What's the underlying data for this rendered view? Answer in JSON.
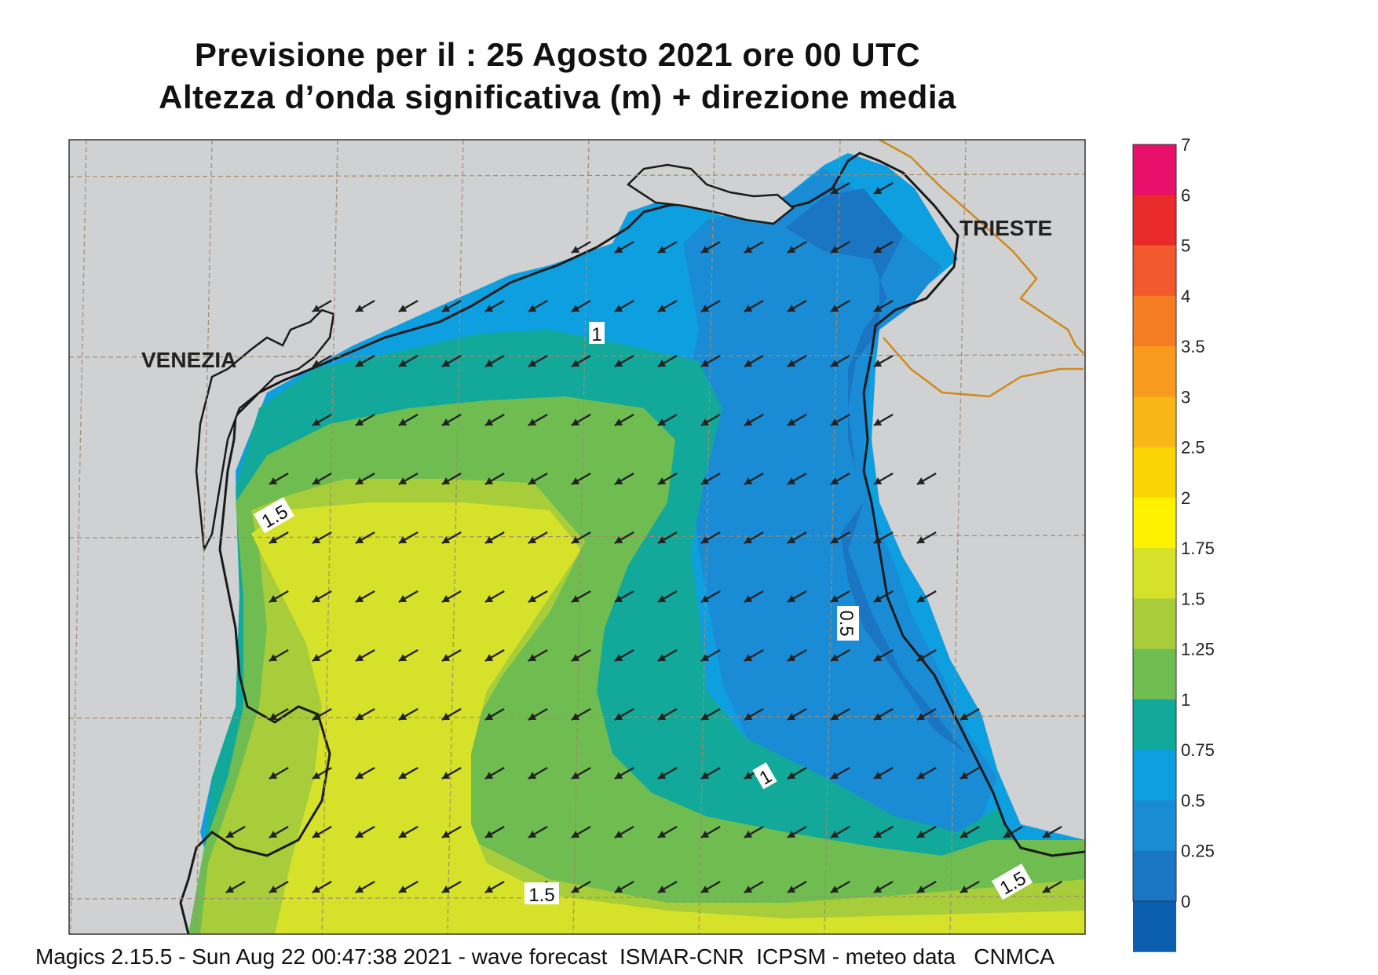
{
  "title": {
    "line1": "Previsione per il  :  25   Agosto  2021   ore 00 UTC",
    "line2": "Altezza d’onda significativa (m) + direzione media"
  },
  "cities": [
    "VENEZIA",
    "TRIESTE"
  ],
  "contour_labels": [
    "1",
    "1.5",
    "0.5",
    "1",
    "1.5",
    "1.5"
  ],
  "colorbar": {
    "levels": [
      "7",
      "6",
      "5",
      "4",
      "3.5",
      "3",
      "2.5",
      "2",
      "1.75",
      "1.5",
      "1.25",
      "1",
      "0.75",
      "0.5",
      "0.25",
      "0"
    ],
    "colors": [
      "#e8106a",
      "#e82a2a",
      "#f25a2e",
      "#f57d24",
      "#f79a1e",
      "#f9b617",
      "#fbd404",
      "#fff200",
      "#d6e12a",
      "#a8cd3a",
      "#6fbd50",
      "#12a89a",
      "#0d9fe0",
      "#1a8cd6",
      "#1a75c2",
      "#0b5fae"
    ]
  },
  "wave_direction": "toward south-west",
  "footer": "Magics 2.15.5 - Sun Aug 22 00:47:38 2021 - wave forecast  ISMAR-CNR  ICPSM - meteo data   CNMCA"
}
